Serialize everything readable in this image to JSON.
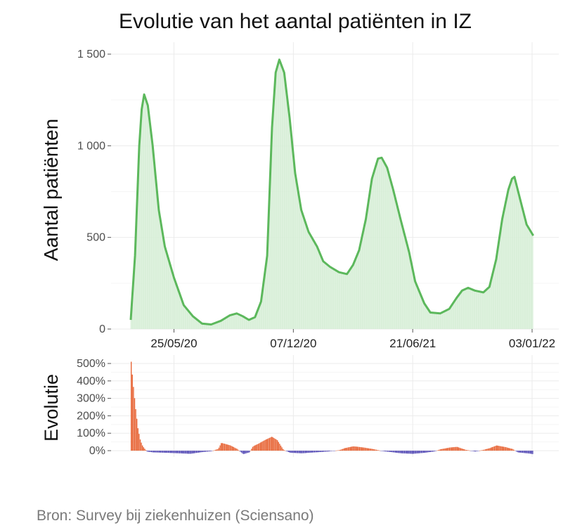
{
  "title": "Evolutie van het aantal patiënten in IZ",
  "source": "Bron: Survey bij ziekenhuizen (Sciensano)",
  "colors": {
    "line": "#5cb85c",
    "area": "#d9f0d9",
    "pos": "#e8683a",
    "neg": "#5b52b8"
  },
  "chart_data": [
    {
      "type": "area",
      "ylabel": "Aantal patiënten",
      "ylim": [
        0,
        1500
      ],
      "y_ticks": [
        0,
        500,
        1000,
        1500
      ],
      "y_tick_labels": [
        "0",
        "500",
        "1 000",
        "1 500"
      ],
      "x_ticks": [
        "2020-05-25",
        "2020-12-07",
        "2021-06-21",
        "2022-01-03"
      ],
      "x_tick_labels": [
        "25/05/20",
        "07/12/20",
        "21/06/21",
        "03/01/22"
      ],
      "x_range": [
        "2020-03-15",
        "2022-01-17"
      ],
      "grid": true,
      "series": [
        {
          "points": [
            [
              "2020-03-15",
              50
            ],
            [
              "2020-03-22",
              400
            ],
            [
              "2020-03-29",
              1000
            ],
            [
              "2020-04-02",
              1200
            ],
            [
              "2020-04-06",
              1280
            ],
            [
              "2020-04-12",
              1220
            ],
            [
              "2020-04-20",
              1000
            ],
            [
              "2020-04-30",
              650
            ],
            [
              "2020-05-10",
              450
            ],
            [
              "2020-05-25",
              280
            ],
            [
              "2020-06-10",
              130
            ],
            [
              "2020-06-25",
              70
            ],
            [
              "2020-07-10",
              30
            ],
            [
              "2020-07-25",
              25
            ],
            [
              "2020-08-10",
              45
            ],
            [
              "2020-08-25",
              75
            ],
            [
              "2020-09-05",
              85
            ],
            [
              "2020-09-15",
              70
            ],
            [
              "2020-09-25",
              50
            ],
            [
              "2020-10-05",
              65
            ],
            [
              "2020-10-15",
              150
            ],
            [
              "2020-10-25",
              400
            ],
            [
              "2020-11-02",
              1100
            ],
            [
              "2020-11-08",
              1400
            ],
            [
              "2020-11-14",
              1470
            ],
            [
              "2020-11-22",
              1400
            ],
            [
              "2020-12-01",
              1150
            ],
            [
              "2020-12-10",
              850
            ],
            [
              "2020-12-20",
              650
            ],
            [
              "2021-01-01",
              530
            ],
            [
              "2021-01-15",
              450
            ],
            [
              "2021-01-25",
              370
            ],
            [
              "2021-02-05",
              340
            ],
            [
              "2021-02-20",
              310
            ],
            [
              "2021-03-05",
              300
            ],
            [
              "2021-03-15",
              350
            ],
            [
              "2021-03-25",
              430
            ],
            [
              "2021-04-05",
              600
            ],
            [
              "2021-04-15",
              820
            ],
            [
              "2021-04-25",
              930
            ],
            [
              "2021-05-01",
              935
            ],
            [
              "2021-05-10",
              880
            ],
            [
              "2021-05-20",
              760
            ],
            [
              "2021-06-01",
              600
            ],
            [
              "2021-06-15",
              420
            ],
            [
              "2021-06-25",
              260
            ],
            [
              "2021-07-10",
              140
            ],
            [
              "2021-07-20",
              90
            ],
            [
              "2021-08-05",
              85
            ],
            [
              "2021-08-20",
              110
            ],
            [
              "2021-09-01",
              170
            ],
            [
              "2021-09-10",
              210
            ],
            [
              "2021-09-20",
              225
            ],
            [
              "2021-10-01",
              210
            ],
            [
              "2021-10-15",
              200
            ],
            [
              "2021-10-25",
              230
            ],
            [
              "2021-11-05",
              380
            ],
            [
              "2021-11-15",
              600
            ],
            [
              "2021-11-25",
              760
            ],
            [
              "2021-12-01",
              820
            ],
            [
              "2021-12-05",
              830
            ],
            [
              "2021-12-15",
              700
            ],
            [
              "2021-12-25",
              570
            ],
            [
              "2022-01-05",
              510
            ]
          ]
        }
      ]
    },
    {
      "type": "bar",
      "ylabel": "Evolutie",
      "ylim": [
        -20,
        520
      ],
      "y_ticks": [
        0,
        100,
        200,
        300,
        400,
        500
      ],
      "y_tick_labels": [
        "0%",
        "100%",
        "200%",
        "300%",
        "400%",
        "500%"
      ],
      "grid": true,
      "series": [
        {
          "points": [
            [
              "2020-03-15",
              510
            ],
            [
              "2020-03-18",
              390
            ],
            [
              "2020-03-22",
              250
            ],
            [
              "2020-03-26",
              130
            ],
            [
              "2020-03-30",
              60
            ],
            [
              "2020-04-03",
              25
            ],
            [
              "2020-04-10",
              -5
            ],
            [
              "2020-04-20",
              -10
            ],
            [
              "2020-05-10",
              -12
            ],
            [
              "2020-06-01",
              -15
            ],
            [
              "2020-06-20",
              -18
            ],
            [
              "2020-07-10",
              -8
            ],
            [
              "2020-07-25",
              -3
            ],
            [
              "2020-08-05",
              10
            ],
            [
              "2020-08-10",
              45
            ],
            [
              "2020-08-25",
              30
            ],
            [
              "2020-09-05",
              10
            ],
            [
              "2020-09-15",
              -20
            ],
            [
              "2020-09-25",
              -10
            ],
            [
              "2020-10-01",
              25
            ],
            [
              "2020-10-10",
              40
            ],
            [
              "2020-10-20",
              60
            ],
            [
              "2020-11-01",
              80
            ],
            [
              "2020-11-10",
              60
            ],
            [
              "2020-11-20",
              5
            ],
            [
              "2020-12-01",
              -12
            ],
            [
              "2020-12-20",
              -15
            ],
            [
              "2021-01-10",
              -10
            ],
            [
              "2021-02-01",
              -5
            ],
            [
              "2021-02-20",
              3
            ],
            [
              "2021-03-01",
              15
            ],
            [
              "2021-03-15",
              25
            ],
            [
              "2021-04-01",
              18
            ],
            [
              "2021-04-15",
              10
            ],
            [
              "2021-05-01",
              -2
            ],
            [
              "2021-05-15",
              -8
            ],
            [
              "2021-06-01",
              -15
            ],
            [
              "2021-06-20",
              -18
            ],
            [
              "2021-07-10",
              -12
            ],
            [
              "2021-07-25",
              -5
            ],
            [
              "2021-08-05",
              8
            ],
            [
              "2021-08-20",
              18
            ],
            [
              "2021-09-01",
              22
            ],
            [
              "2021-09-15",
              5
            ],
            [
              "2021-10-01",
              -5
            ],
            [
              "2021-10-15",
              5
            ],
            [
              "2021-10-25",
              15
            ],
            [
              "2021-11-05",
              30
            ],
            [
              "2021-11-20",
              20
            ],
            [
              "2021-12-01",
              10
            ],
            [
              "2021-12-10",
              -10
            ],
            [
              "2021-12-25",
              -15
            ],
            [
              "2022-01-05",
              -20
            ]
          ]
        }
      ]
    }
  ]
}
